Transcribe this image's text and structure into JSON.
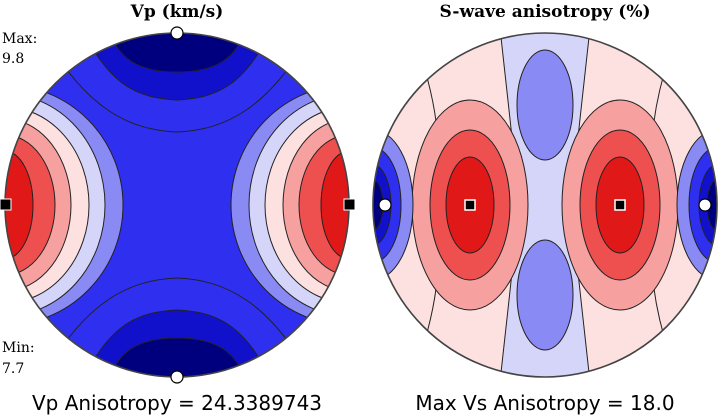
{
  "chart_data": [
    {
      "type": "heatmap",
      "title": "Vp (km/s)",
      "max_label": "Max:",
      "max_value": "9.8",
      "min_label": "Min:",
      "min_value": "7.7",
      "caption": "Vp Anisotropy = 24.3389743",
      "colormap": [
        "#00007f",
        "#1111cc",
        "#2f2ff0",
        "#8a8af5",
        "#d5d5fa",
        "#fde0e0",
        "#f6a0a0",
        "#ee5050",
        "#e01818",
        "#b00000"
      ],
      "max_markers": "squares at east and west edge",
      "min_markers": "circles at north and south edge"
    },
    {
      "type": "heatmap",
      "title": "S-wave anisotropy (%)",
      "caption": "Max Vs Anisotropy = 18.0",
      "colormap": [
        "#00007f",
        "#1111cc",
        "#2f2ff0",
        "#8a8af5",
        "#d5d5fa",
        "#fde0e0",
        "#f6a0a0",
        "#ee5050",
        "#e01818",
        "#b00000"
      ],
      "max_markers": "squares at two interior maxima",
      "min_markers": "circles at east and west edge"
    }
  ]
}
